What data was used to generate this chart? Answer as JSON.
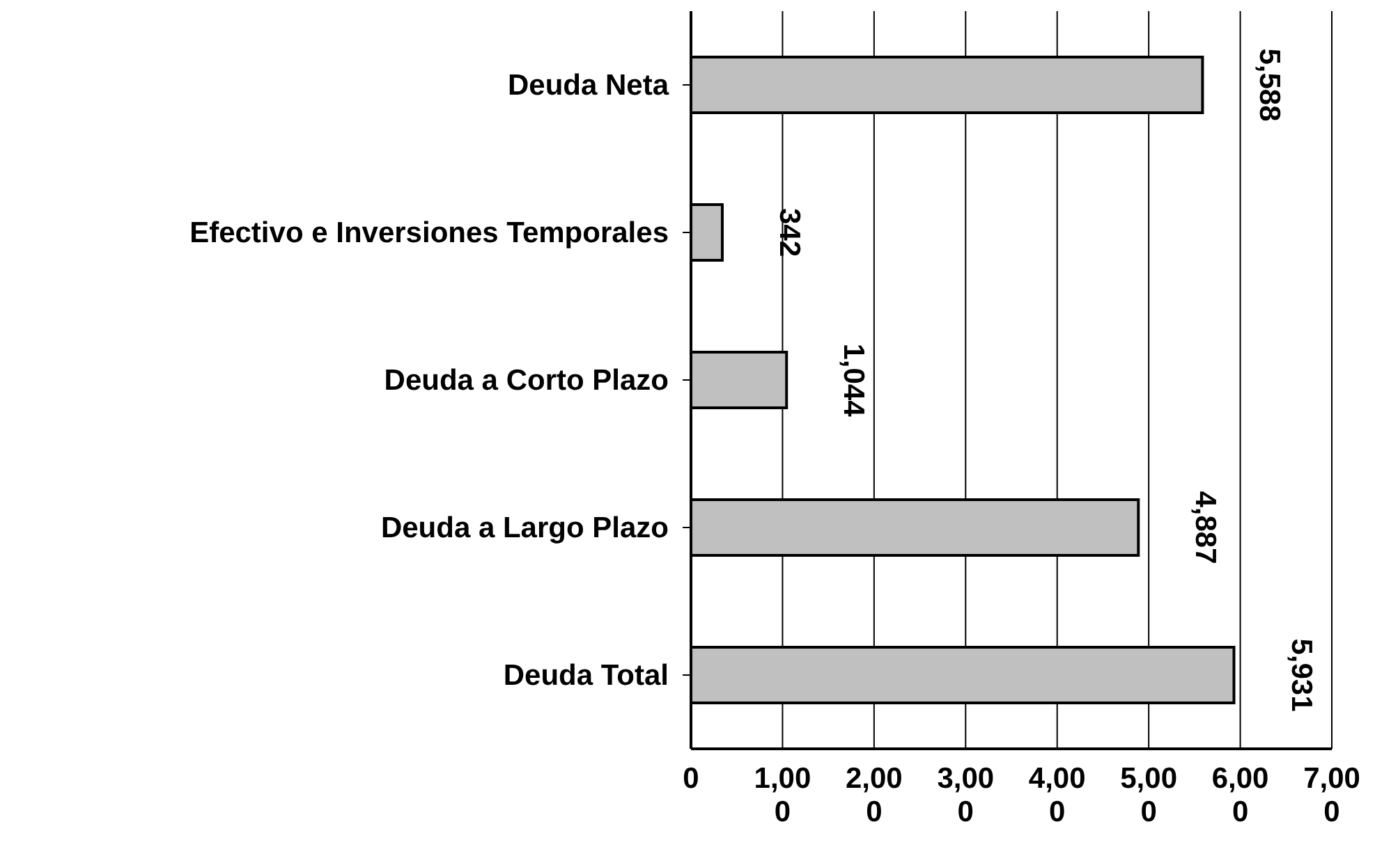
{
  "chart_data": {
    "type": "bar",
    "orientation": "horizontal",
    "categories": [
      "Deuda Neta",
      "Efectivo e Inversiones Temporales",
      "Deuda a Corto Plazo",
      "Deuda a Largo Plazo",
      "Deuda Total"
    ],
    "values": [
      5588,
      342,
      1044,
      4887,
      5931
    ],
    "value_labels": [
      "5,588",
      "342",
      "1,044",
      "4,887",
      "5,931"
    ],
    "color": "#c0c0c0",
    "xlim": [
      0,
      7000
    ],
    "xticks": [
      0,
      {
        "value": 1000,
        "label": "1,000"
      },
      {
        "value": 2000,
        "label": "2,000"
      },
      {
        "value": 3000,
        "label": "3,000"
      },
      {
        "value": 4000,
        "label": "4,000"
      },
      {
        "value": 5000,
        "label": "5,000"
      },
      {
        "value": 6000,
        "label": "6,000"
      },
      {
        "value": 7000,
        "label": "7,000"
      }
    ],
    "grid": "x",
    "legend": false
  }
}
